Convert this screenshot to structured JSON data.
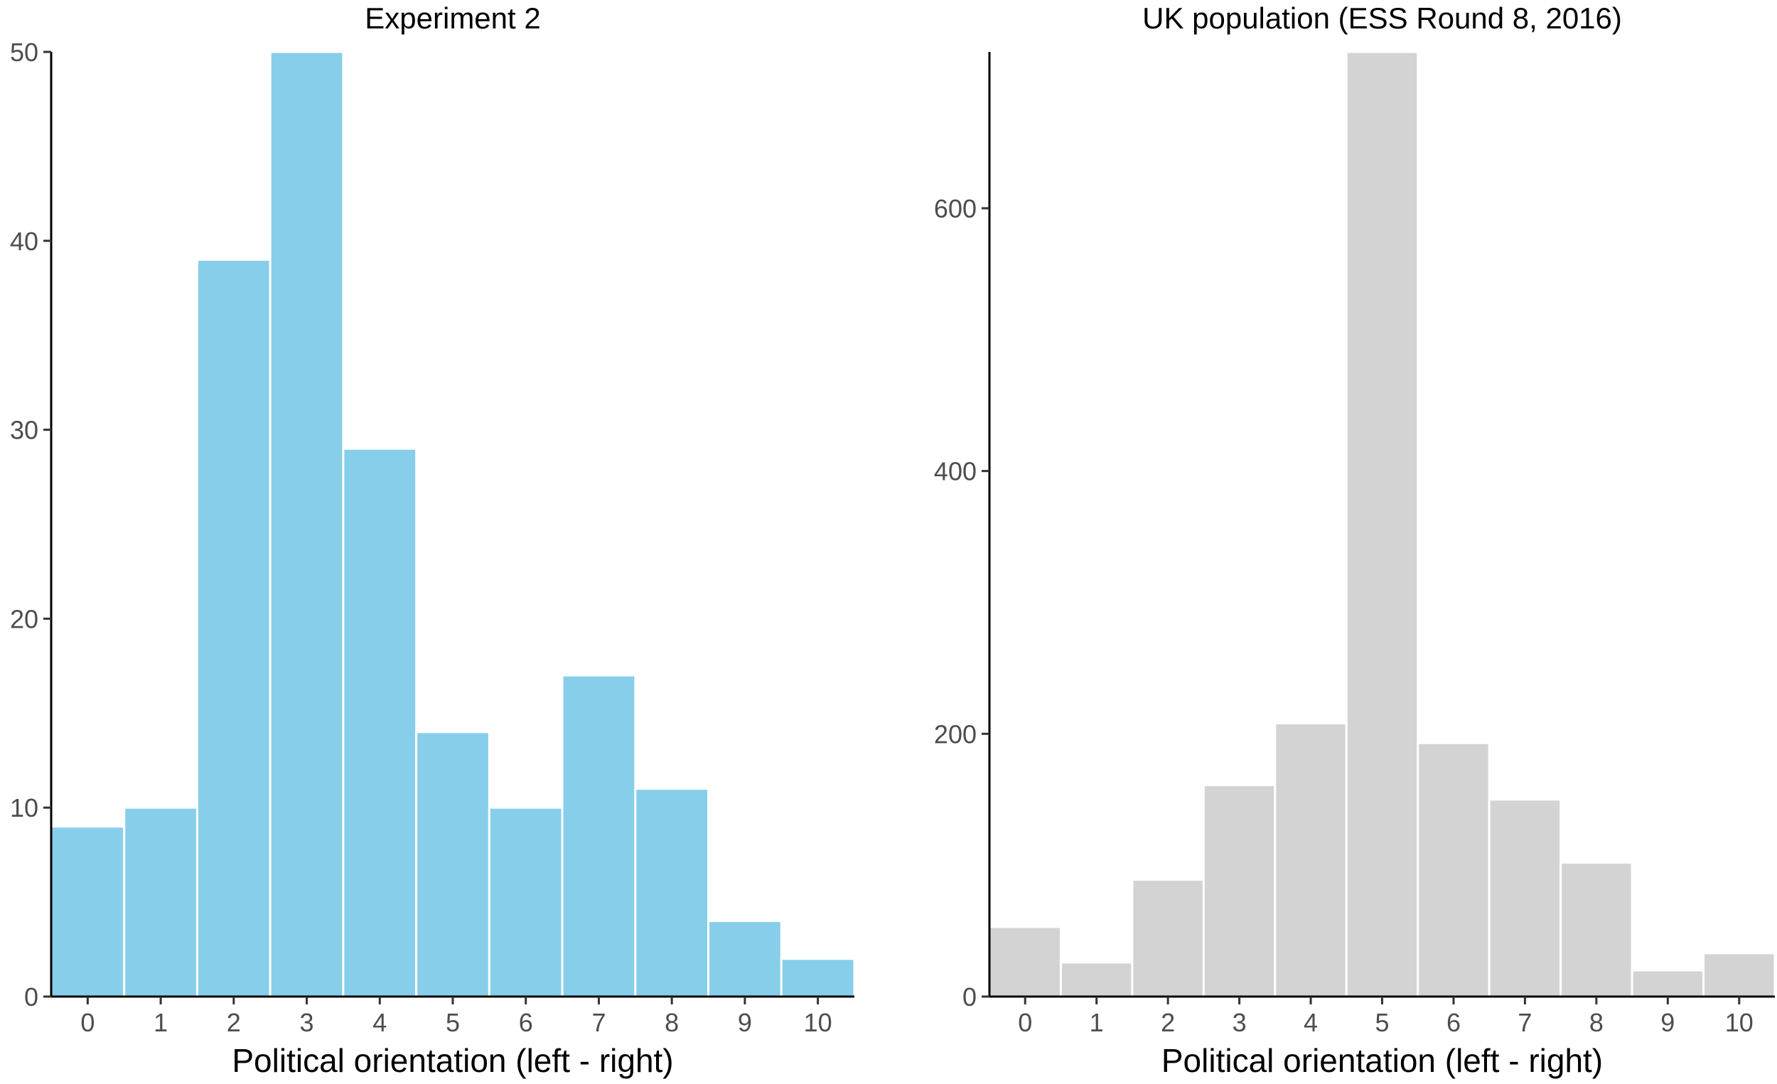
{
  "chart_data": [
    {
      "type": "bar",
      "title": "Experiment 2",
      "xlabel": "Political orientation (left - right)",
      "ylabel": "",
      "categories": [
        "0",
        "1",
        "2",
        "3",
        "4",
        "5",
        "6",
        "7",
        "8",
        "9",
        "10"
      ],
      "values": [
        9,
        10,
        39,
        50,
        29,
        14,
        10,
        17,
        11,
        4,
        2
      ],
      "ylim": [
        0,
        50
      ],
      "yticks": [
        0,
        10,
        20,
        30,
        40,
        50
      ],
      "color": "#87CEEB"
    },
    {
      "type": "bar",
      "title": "UK population (ESS Round 8, 2016)",
      "xlabel": "Political orientation (left - right)",
      "ylabel": "",
      "categories": [
        "0",
        "1",
        "2",
        "3",
        "4",
        "5",
        "6",
        "7",
        "8",
        "9",
        "10"
      ],
      "values": [
        53,
        26,
        89,
        161,
        208,
        719,
        193,
        150,
        102,
        20,
        33
      ],
      "ylim": [
        0,
        719
      ],
      "yticks": [
        0,
        200,
        400,
        600
      ],
      "color": "#D3D3D3"
    }
  ]
}
